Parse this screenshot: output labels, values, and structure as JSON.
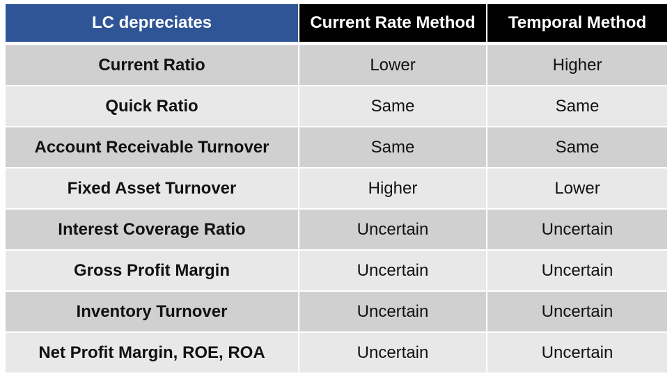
{
  "table": {
    "headers": [
      "LC depreciates",
      "Current Rate Method",
      "Temporal Method"
    ],
    "rows": [
      {
        "label": "Current Ratio",
        "current_rate": "Lower",
        "temporal": "Higher"
      },
      {
        "label": "Quick Ratio",
        "current_rate": "Same",
        "temporal": "Same"
      },
      {
        "label": "Account Receivable Turnover",
        "current_rate": "Same",
        "temporal": "Same"
      },
      {
        "label": "Fixed Asset Turnover",
        "current_rate": "Higher",
        "temporal": "Lower"
      },
      {
        "label": "Interest Coverage Ratio",
        "current_rate": "Uncertain",
        "temporal": "Uncertain"
      },
      {
        "label": "Gross Profit Margin",
        "current_rate": "Uncertain",
        "temporal": "Uncertain"
      },
      {
        "label": "Inventory Turnover",
        "current_rate": "Uncertain",
        "temporal": "Uncertain"
      },
      {
        "label": "Net Profit Margin, ROE, ROA",
        "current_rate": "Uncertain",
        "temporal": "Uncertain"
      }
    ]
  },
  "colors": {
    "header_first": "#2f5597",
    "header_other": "#000000",
    "row_dark": "#d0d0d0",
    "row_light": "#e8e8e8"
  }
}
